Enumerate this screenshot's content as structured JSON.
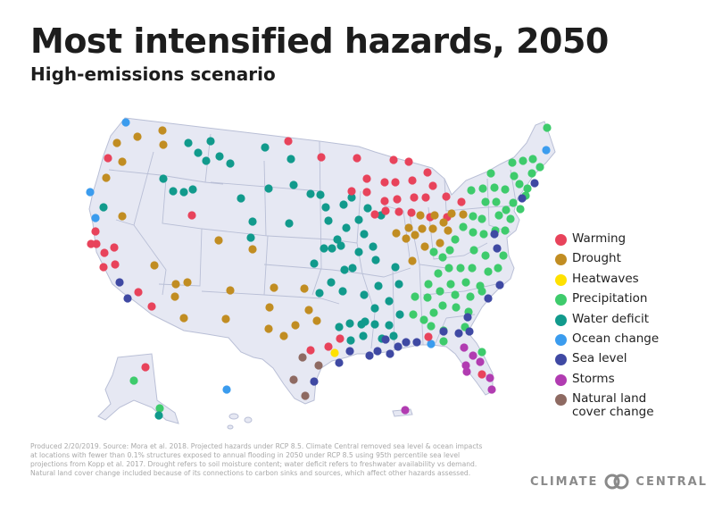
{
  "header": {
    "title": "Most intensified hazards, 2050",
    "subtitle": "High-emissions scenario"
  },
  "legend": [
    {
      "key": "warming",
      "label": "Warming",
      "color": "#e8435b"
    },
    {
      "key": "drought",
      "label": "Drought",
      "color": "#c18d22"
    },
    {
      "key": "heatwaves",
      "label": "Heatwaves",
      "color": "#ffe100"
    },
    {
      "key": "precipitation",
      "label": "Precipitation",
      "color": "#3ecb6c"
    },
    {
      "key": "water",
      "label": "Water deficit",
      "color": "#119a8c"
    },
    {
      "key": "ocean",
      "label": "Ocean change",
      "color": "#3b9cee"
    },
    {
      "key": "sea",
      "label": "Sea level",
      "color": "#3f49a3"
    },
    {
      "key": "storms",
      "label": "Storms",
      "color": "#b13cb1"
    },
    {
      "key": "landcover",
      "label": "Natural land cover change",
      "color": "#8e6a62"
    }
  ],
  "map": {
    "land_color": "#e6e8f3",
    "border_color": "#b9bfd6"
  },
  "footnote": "Produced 2/20/2019. Source: Mora et al. 2018. Projected hazards under RCP 8.5. Climate Central removed sea level & ocean impacts at locations with fewer than 0.1% structures exposed to annual flooding in 2050 under RCP 8.5 using 95th percentile sea level projections from Kopp et al. 2017. Drought refers to soil moisture content; water deficit refers to freshwater availability vs demand. Natural land cover change included because of its connections to carbon sinks and sources, which affect other hazards assessed.",
  "brand": {
    "left": "CLIMATE",
    "right": "CENTRAL"
  }
}
